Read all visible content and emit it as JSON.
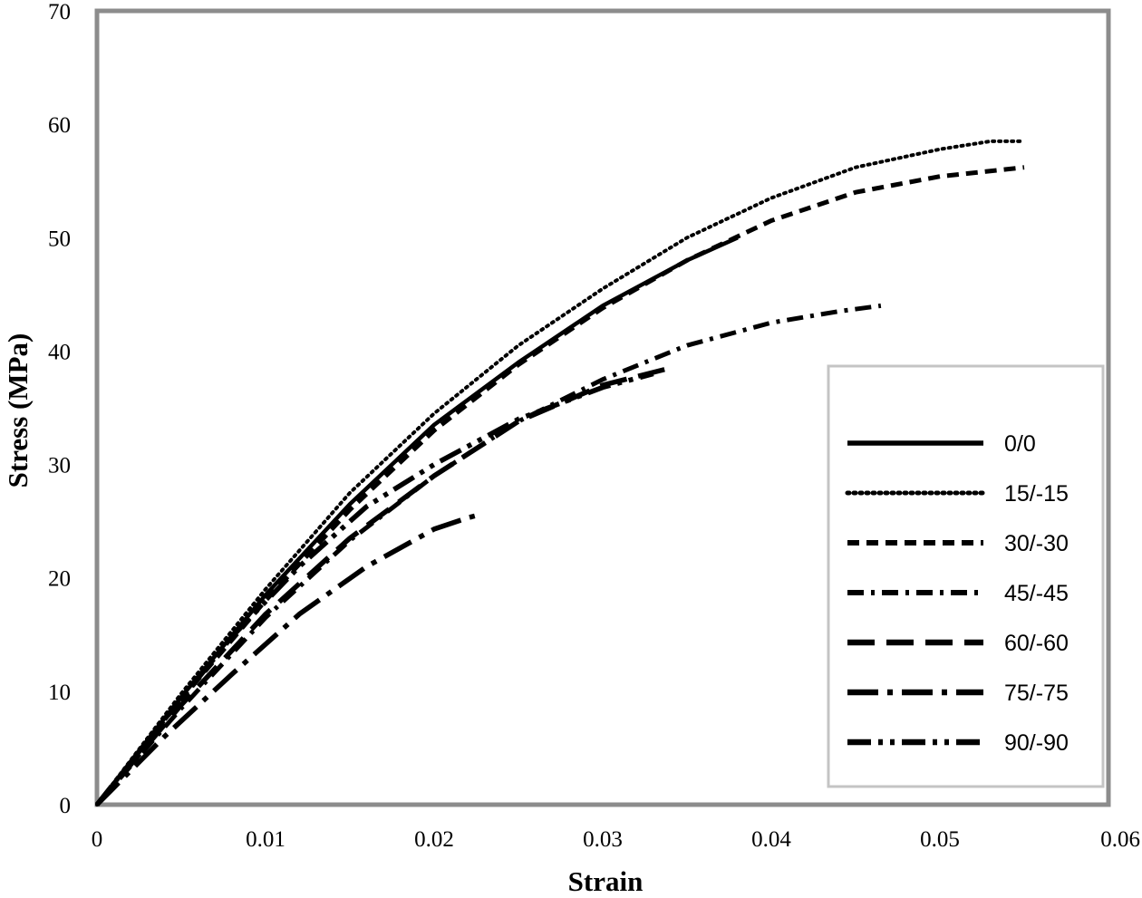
{
  "chart_data": {
    "type": "line",
    "xlabel": "Strain",
    "ylabel": "Stress (MPa)",
    "xlim": [
      0,
      0.06
    ],
    "ylim": [
      0,
      70
    ],
    "xticks": [
      "0",
      "0.01",
      "0.02",
      "0.03",
      "0.04",
      "0.05",
      "0.06"
    ],
    "yticks": [
      "0",
      "10",
      "20",
      "30",
      "40",
      "50",
      "60",
      "70"
    ],
    "grid": false,
    "legend_position": "bottom-right",
    "series": [
      {
        "name": "0/0",
        "style": "solid",
        "x": [
          0,
          0.005,
          0.01,
          0.015,
          0.02,
          0.025,
          0.03,
          0.035,
          0.038
        ],
        "y": [
          0,
          9.5,
          18.5,
          26.5,
          33.5,
          39.0,
          44.0,
          48.0,
          50.0
        ]
      },
      {
        "name": "15/-15",
        "style": "dotted",
        "x": [
          0,
          0.005,
          0.01,
          0.015,
          0.02,
          0.025,
          0.03,
          0.035,
          0.04,
          0.045,
          0.05,
          0.053,
          0.055
        ],
        "y": [
          0,
          9.8,
          19.0,
          27.5,
          34.5,
          40.5,
          45.5,
          50.0,
          53.5,
          56.2,
          57.8,
          58.5,
          58.5
        ]
      },
      {
        "name": "30/-30",
        "style": "short-dash",
        "x": [
          0,
          0.005,
          0.01,
          0.015,
          0.02,
          0.025,
          0.03,
          0.035,
          0.04,
          0.045,
          0.05,
          0.055
        ],
        "y": [
          0,
          9.3,
          18.0,
          26.0,
          33.0,
          38.8,
          43.8,
          48.0,
          51.5,
          54.0,
          55.4,
          56.2
        ]
      },
      {
        "name": "45/-45",
        "style": "dash-dot",
        "x": [
          0,
          0.005,
          0.01,
          0.015,
          0.02,
          0.025,
          0.03,
          0.035,
          0.04,
          0.044,
          0.0465
        ],
        "y": [
          0,
          8.5,
          16.5,
          23.3,
          29.0,
          33.8,
          37.5,
          40.5,
          42.5,
          43.5,
          44.0
        ]
      },
      {
        "name": "60/-60",
        "style": "long-dash",
        "x": [
          0,
          0.005,
          0.01,
          0.015,
          0.02,
          0.025,
          0.03,
          0.034
        ],
        "y": [
          0,
          8.8,
          16.8,
          23.5,
          29.0,
          33.8,
          37.0,
          38.5
        ]
      },
      {
        "name": "75/-75",
        "style": "long-dash-dot",
        "x": [
          0,
          0.004,
          0.008,
          0.012,
          0.016,
          0.02,
          0.022,
          0.0225
        ],
        "y": [
          0,
          6.0,
          11.5,
          16.8,
          21.0,
          24.3,
          25.3,
          25.5
        ]
      },
      {
        "name": "90/-90",
        "style": "dash-dot-dot",
        "x": [
          0,
          0.004,
          0.008,
          0.012,
          0.016,
          0.02,
          0.025,
          0.03,
          0.033
        ],
        "y": [
          0,
          7.5,
          14.8,
          21.0,
          26.3,
          30.0,
          34.0,
          36.8,
          38.0
        ]
      }
    ]
  }
}
